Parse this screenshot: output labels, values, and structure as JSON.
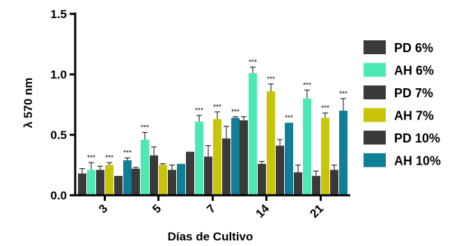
{
  "chart_data": {
    "type": "bar",
    "xlabel": "Días de Cultivo",
    "ylabel": "λ 570 nm",
    "ylim": [
      0,
      1.5
    ],
    "yticks": [
      "0.0",
      "0.5",
      "1.0",
      "1.5"
    ],
    "categories": [
      "3",
      "5",
      "7",
      "14",
      "21"
    ],
    "legend_position": "right",
    "series": [
      {
        "name": "PD 6%",
        "color": "#3a3a3a",
        "values": [
          0.18,
          0.22,
          0.36,
          0.62,
          0.19
        ],
        "errors": [
          0.04,
          0.01,
          0.0,
          0.03,
          0.06
        ],
        "sig": [
          "",
          "",
          "",
          "",
          ""
        ]
      },
      {
        "name": "AH 6%",
        "color": "#4ce8b6",
        "values": [
          0.21,
          0.46,
          0.61,
          1.01,
          0.8
        ],
        "errors": [
          0.06,
          0.06,
          0.05,
          0.05,
          0.07
        ],
        "sig": [
          "***",
          "***",
          "***",
          "***",
          "***"
        ]
      },
      {
        "name": "PD 7%",
        "color": "#3a3a3a",
        "values": [
          0.21,
          0.33,
          0.32,
          0.26,
          0.16
        ],
        "errors": [
          0.03,
          0.07,
          0.09,
          0.02,
          0.04
        ],
        "sig": [
          "",
          "",
          "",
          "",
          ""
        ]
      },
      {
        "name": "AH 7%",
        "color": "#c8c40a",
        "values": [
          0.25,
          0.25,
          0.63,
          0.86,
          0.64
        ],
        "errors": [
          0.02,
          0.01,
          0.06,
          0.06,
          0.04
        ],
        "sig": [
          "***",
          "",
          "***",
          "***",
          "***"
        ]
      },
      {
        "name": "PD 10%",
        "color": "#3a3a3a",
        "values": [
          0.16,
          0.21,
          0.47,
          0.41,
          0.21
        ],
        "errors": [
          0.0,
          0.04,
          0.1,
          0.05,
          0.04
        ],
        "sig": [
          "",
          "",
          "",
          "",
          ""
        ]
      },
      {
        "name": "AH 10%",
        "color": "#0e7f96",
        "values": [
          0.29,
          0.26,
          0.64,
          0.6,
          0.7
        ],
        "errors": [
          0.02,
          0.0,
          0.01,
          0.0,
          0.1
        ],
        "sig": [
          "***",
          "",
          "***",
          "***",
          "***"
        ]
      }
    ]
  }
}
